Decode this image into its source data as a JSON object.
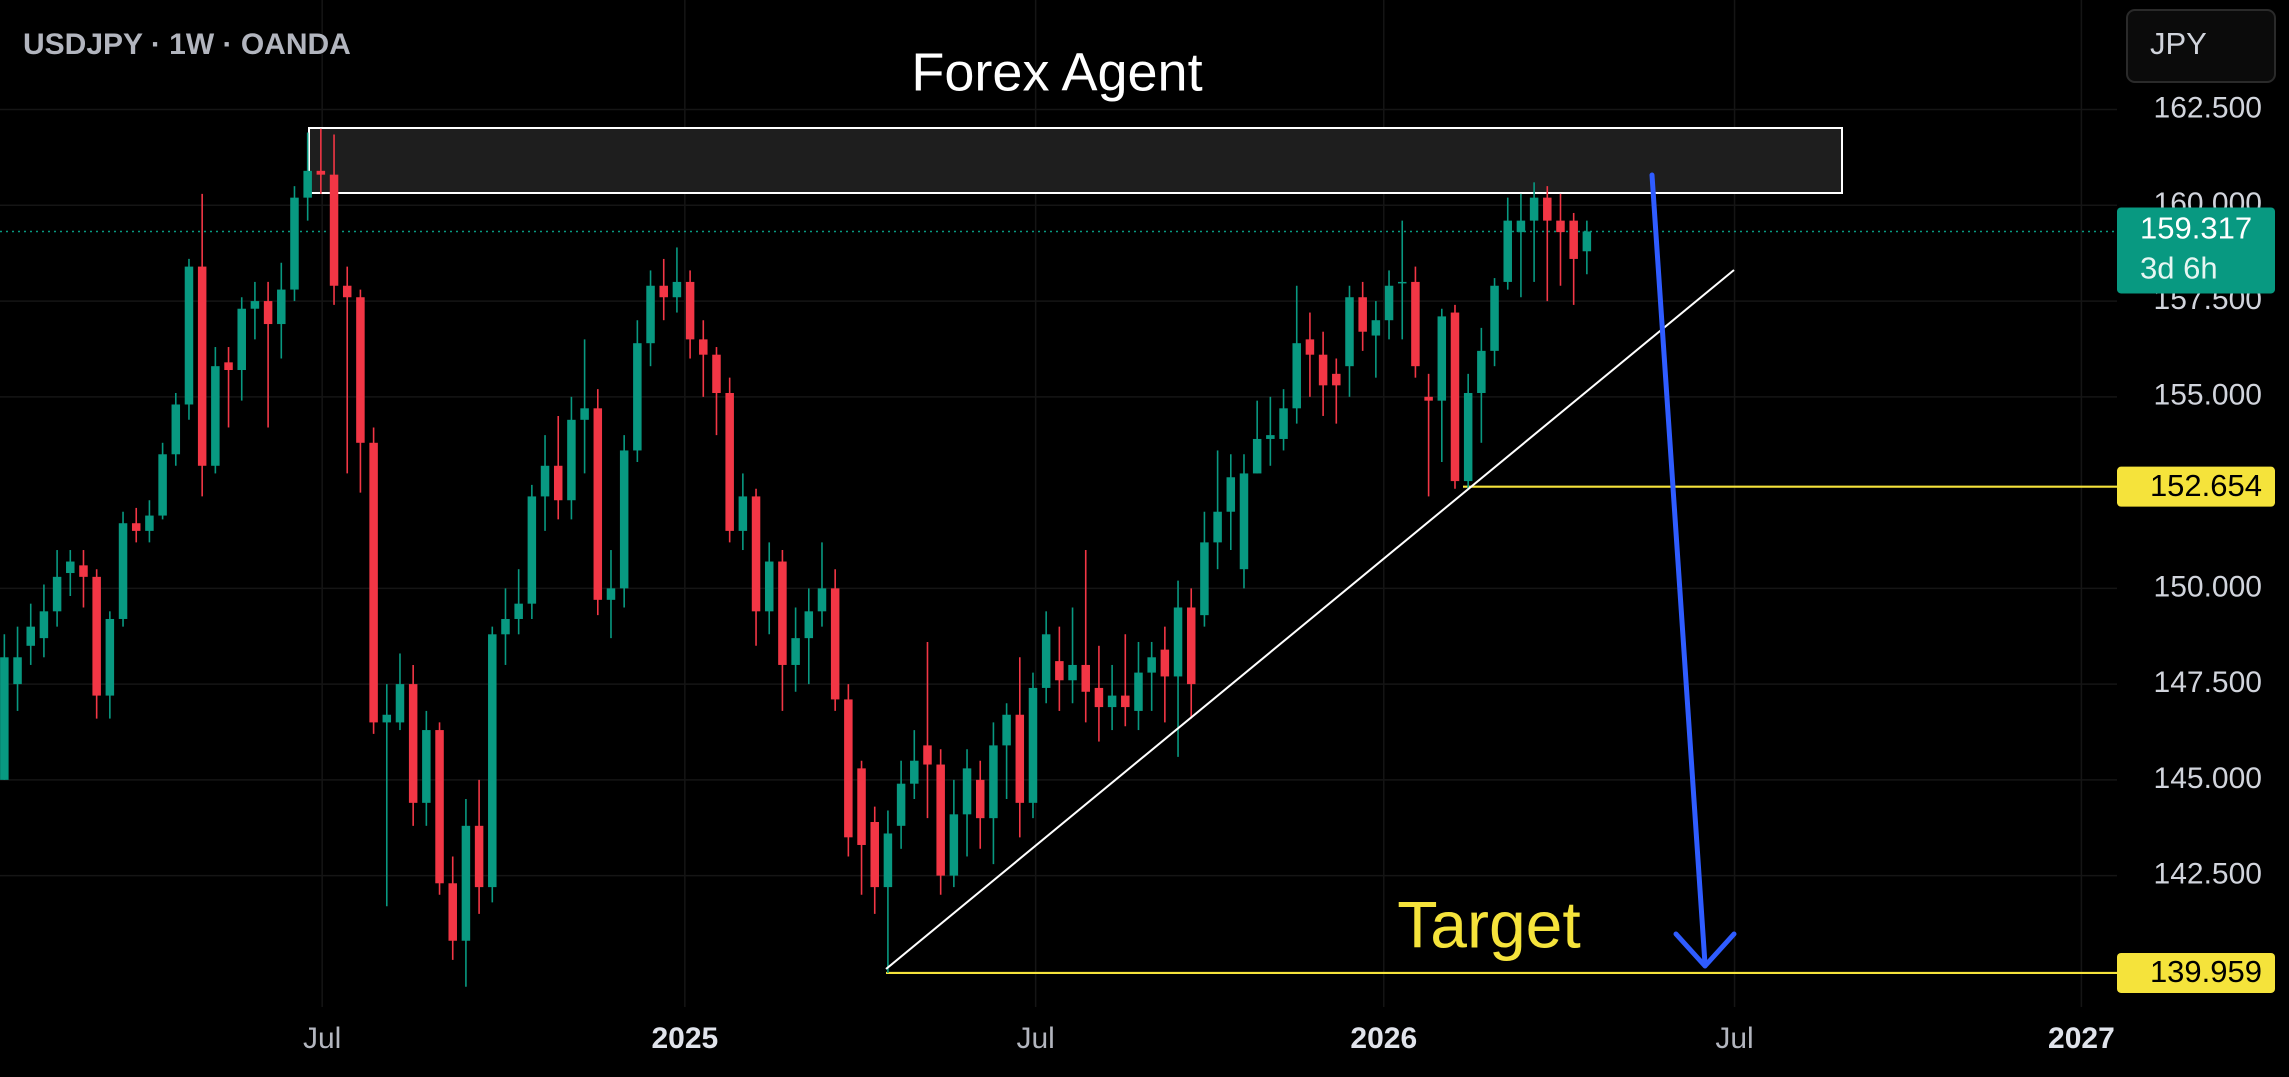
{
  "chart_data": {
    "type": "candlestick",
    "title": "USDJPY · 1W · OANDA",
    "heading": "Forex Agent",
    "annotation": "Target",
    "currency_button": "JPY",
    "colors": {
      "up": "#089981",
      "down": "#f23645",
      "level": "#f5e33b",
      "arrow": "#2f5cff",
      "trend": "#ffffff"
    },
    "grid": true,
    "xlim": [
      -0.33,
      160.2
    ],
    "ylim": [
      139.07,
      165.36
    ],
    "xticks": [
      {
        "value": 24.1,
        "label": "Jul"
      },
      {
        "value": 51.6,
        "label": "2025"
      },
      {
        "value": 78.2,
        "label": "Jul"
      },
      {
        "value": 104.6,
        "label": "2026"
      },
      {
        "value": 131.2,
        "label": "Jul"
      },
      {
        "value": 157.5,
        "label": "2027"
      }
    ],
    "yticks": [
      {
        "value": 142.5,
        "label": "142.500"
      },
      {
        "value": 145,
        "label": "145.000"
      },
      {
        "value": 147.5,
        "label": "147.500"
      },
      {
        "value": 150,
        "label": "150.000"
      },
      {
        "value": 155,
        "label": "155.000"
      },
      {
        "value": 157.5,
        "label": "157.500"
      },
      {
        "value": 160,
        "label": "160.000"
      },
      {
        "value": 162.5,
        "label": "162.500"
      }
    ],
    "last_price": {
      "value": 159.317,
      "label": "159.317",
      "countdown": "3d 6h"
    },
    "levels": [
      {
        "value": 152.654,
        "label": "152.654"
      },
      {
        "value": 139.959,
        "label": "139.959"
      }
    ],
    "x": [
      0,
      1,
      2,
      3,
      4,
      5,
      6,
      7,
      8,
      9,
      10,
      11,
      12,
      13,
      14,
      15,
      16,
      17,
      18,
      19,
      20,
      21,
      22,
      23,
      24,
      25,
      26,
      27,
      28,
      29,
      30,
      31,
      32,
      33,
      34,
      35,
      36,
      37,
      38,
      39,
      40,
      41,
      42,
      43,
      44,
      45,
      46,
      47,
      48,
      49,
      50,
      51,
      52,
      53,
      54,
      55,
      56,
      57,
      58,
      59,
      60,
      61,
      62,
      63,
      64,
      65,
      66,
      67,
      68,
      69,
      70,
      71,
      72,
      73,
      74,
      75,
      76,
      77,
      78,
      79,
      80,
      81,
      82,
      83,
      84,
      85,
      86,
      87,
      88,
      89,
      90,
      91,
      92,
      93,
      94,
      95,
      96,
      97,
      98,
      99,
      100,
      101,
      102,
      103,
      104,
      105,
      106,
      107,
      108,
      109,
      110,
      111,
      112,
      113,
      114,
      115,
      116,
      117,
      118,
      119,
      120
    ],
    "open": [
      145.0,
      147.5,
      148.5,
      148.7,
      149.4,
      150.4,
      150.6,
      150.3,
      147.2,
      149.2,
      151.7,
      151.5,
      151.9,
      153.5,
      154.8,
      158.4,
      153.2,
      155.9,
      155.7,
      157.3,
      157.5,
      156.9,
      157.8,
      160.2,
      160.9,
      160.8,
      157.9,
      157.6,
      153.8,
      146.5,
      146.5,
      147.5,
      144.4,
      146.3,
      142.3,
      140.8,
      143.8,
      142.2,
      148.8,
      149.2,
      149.6,
      152.4,
      153.2,
      152.3,
      154.4,
      154.7,
      149.7,
      150.0,
      153.6,
      156.4,
      157.9,
      157.6,
      158.0,
      156.5,
      156.1,
      155.1,
      151.5,
      152.4,
      149.4,
      150.7,
      148.0,
      148.7,
      149.4,
      150.0,
      147.1,
      145.3,
      143.9,
      142.2,
      143.8,
      144.9,
      145.9,
      145.4,
      142.5,
      144.1,
      145.0,
      144.0,
      145.9,
      146.7,
      144.4,
      147.4,
      148.1,
      147.6,
      148.0,
      147.4,
      146.9,
      147.2,
      146.8,
      147.8,
      148.4,
      147.7,
      149.5,
      149.3,
      151.2,
      152.0,
      150.5,
      153.0,
      153.9,
      153.9,
      154.7,
      156.5,
      156.1,
      155.6,
      155.8,
      157.6,
      156.6,
      157.0,
      158.0,
      158.0,
      155.0,
      154.9,
      157.2,
      152.8,
      155.1,
      156.2,
      158.0,
      159.3,
      159.6,
      160.2,
      159.6,
      159.6,
      158.8
    ],
    "high": [
      148.8,
      149.0,
      149.6,
      150.1,
      151.0,
      151.0,
      151.0,
      150.5,
      149.4,
      152.0,
      152.1,
      152.3,
      153.8,
      155.1,
      158.6,
      160.3,
      156.3,
      156.3,
      157.6,
      158.0,
      158.0,
      158.5,
      160.5,
      161.9,
      162.0,
      161.85,
      158.4,
      157.8,
      154.2,
      147.5,
      148.3,
      148.0,
      146.8,
      146.5,
      143.0,
      144.5,
      145.0,
      149.0,
      150.0,
      150.5,
      152.7,
      154.0,
      154.5,
      155.0,
      156.5,
      155.2,
      151.0,
      154.0,
      157.0,
      158.3,
      158.6,
      158.9,
      158.3,
      157.0,
      156.3,
      155.5,
      153.0,
      152.6,
      151.2,
      151.0,
      149.5,
      150.0,
      151.2,
      150.5,
      147.5,
      145.5,
      144.3,
      144.2,
      145.5,
      146.3,
      148.6,
      145.8,
      145.0,
      145.8,
      145.5,
      146.5,
      147.0,
      148.2,
      147.8,
      149.4,
      149.0,
      149.5,
      151.0,
      148.5,
      148.0,
      148.8,
      148.6,
      148.6,
      149.0,
      150.2,
      150.0,
      152.0,
      153.6,
      153.5,
      153.5,
      154.9,
      155.0,
      155.2,
      157.9,
      157.2,
      156.7,
      156.0,
      157.9,
      158.0,
      157.5,
      158.3,
      159.6,
      158.4,
      155.6,
      157.3,
      157.4,
      155.6,
      156.8,
      158.1,
      160.2,
      160.3,
      160.6,
      160.5,
      160.3,
      159.8,
      159.6
    ],
    "low": [
      145.0,
      146.8,
      148.0,
      148.2,
      149.0,
      149.8,
      149.5,
      146.6,
      146.6,
      149.0,
      151.2,
      151.2,
      151.8,
      153.2,
      154.4,
      152.4,
      153.0,
      154.2,
      154.9,
      156.5,
      154.2,
      156.0,
      157.5,
      159.6,
      160.3,
      157.4,
      153.0,
      152.5,
      146.2,
      141.7,
      146.3,
      143.8,
      143.8,
      142.0,
      140.3,
      139.6,
      141.5,
      141.8,
      148.0,
      148.8,
      149.2,
      151.5,
      151.8,
      151.8,
      153.0,
      149.3,
      148.7,
      149.5,
      153.3,
      155.8,
      157.0,
      157.2,
      156.0,
      155.0,
      154.0,
      151.2,
      151.0,
      148.5,
      148.8,
      146.8,
      147.3,
      147.5,
      149.0,
      146.8,
      143.0,
      142.0,
      141.5,
      139.96,
      143.2,
      144.5,
      144.0,
      142.0,
      142.2,
      143.0,
      143.2,
      142.8,
      144.5,
      143.5,
      144.0,
      147.0,
      146.8,
      147.0,
      146.5,
      146.0,
      146.3,
      146.4,
      146.3,
      146.8,
      146.5,
      145.6,
      146.6,
      149.0,
      150.5,
      151.0,
      150.0,
      153.0,
      153.2,
      153.6,
      154.3,
      155.0,
      154.5,
      154.3,
      155.0,
      156.2,
      155.5,
      156.5,
      156.5,
      155.5,
      152.4,
      153.3,
      152.6,
      152.6,
      153.8,
      155.8,
      157.8,
      157.6,
      158.0,
      157.5,
      157.9,
      157.4,
      158.2
    ],
    "close": [
      148.2,
      148.2,
      149.0,
      149.4,
      150.3,
      150.7,
      150.3,
      147.2,
      149.2,
      151.7,
      151.5,
      151.9,
      153.5,
      154.8,
      158.4,
      153.2,
      155.8,
      155.7,
      157.3,
      157.5,
      156.9,
      157.8,
      160.2,
      160.9,
      160.8,
      157.9,
      157.6,
      153.8,
      146.5,
      146.7,
      147.5,
      144.4,
      146.3,
      142.3,
      140.8,
      143.8,
      142.2,
      148.8,
      149.2,
      149.6,
      152.4,
      153.2,
      152.3,
      154.4,
      154.7,
      149.7,
      150.0,
      153.6,
      156.4,
      157.9,
      157.6,
      158.0,
      156.5,
      156.1,
      155.1,
      151.5,
      152.4,
      149.4,
      150.7,
      148.0,
      148.7,
      149.4,
      150.0,
      147.1,
      143.5,
      143.3,
      142.2,
      143.6,
      144.9,
      145.5,
      145.4,
      142.5,
      144.1,
      145.3,
      144.0,
      145.9,
      146.7,
      144.4,
      147.4,
      148.8,
      147.6,
      148.0,
      147.3,
      146.9,
      147.2,
      146.9,
      147.8,
      148.2,
      147.7,
      149.5,
      147.5,
      151.2,
      152.0,
      152.9,
      153.0,
      153.9,
      154.0,
      154.7,
      156.4,
      156.1,
      155.3,
      155.3,
      157.6,
      156.7,
      157.0,
      157.9,
      158.0,
      155.8,
      154.9,
      157.1,
      152.8,
      155.1,
      156.2,
      157.9,
      159.6,
      159.6,
      160.2,
      159.6,
      159.3,
      158.6,
      159.317
    ]
  }
}
